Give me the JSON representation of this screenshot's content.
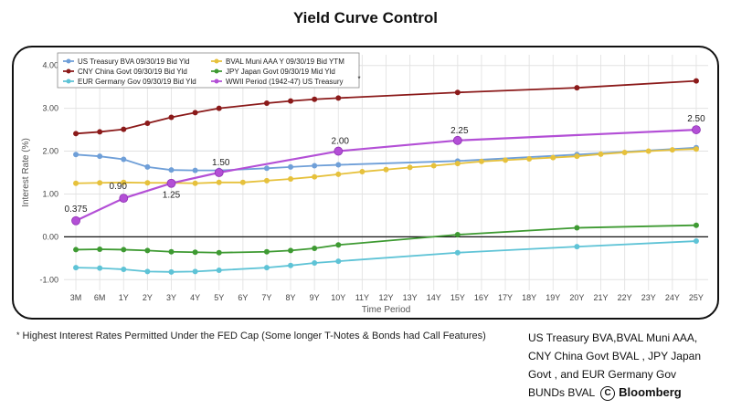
{
  "title": "Yield Curve Control",
  "footnote": {
    "marker": "*",
    "text": "Highest Interest Rates Permitted Under the FED Cap (Some longer T-Notes & Bonds had Call Features)"
  },
  "source": {
    "lines": [
      "US Treasury BVA,BVAL Muni AAA,",
      "CNY China Govt  BVAL , JPY Japan",
      "Govt , and EUR Germany Gov"
    ],
    "last_line": "BUNDs BVAL",
    "copyright_symbol": "C",
    "brand": "Bloomberg"
  },
  "chart_data": {
    "type": "line",
    "xlabel": "Time Period",
    "ylabel": "Interest Rate (%)",
    "ylim": [
      -1.25,
      4.25
    ],
    "yticks": [
      -1.0,
      0.0,
      1.0,
      2.0,
      3.0,
      4.0
    ],
    "ytick_labels": [
      "-1.00",
      "0.00",
      "1.00",
      "2.00",
      "3.00",
      "4.00"
    ],
    "grid": true,
    "zero_line": true,
    "legend_position": "top-left",
    "categories": [
      "3M",
      "6M",
      "1Y",
      "2Y",
      "3Y",
      "4Y",
      "5Y",
      "6Y",
      "7Y",
      "8Y",
      "9Y",
      "10Y",
      "11Y",
      "12Y",
      "13Y",
      "14Y",
      "15Y",
      "16Y",
      "17Y",
      "18Y",
      "19Y",
      "20Y",
      "21Y",
      "22Y",
      "23Y",
      "24Y",
      "25Y"
    ],
    "series": [
      {
        "name": "US Treasury BVA 09/30/19 Bid Yld",
        "color": "#6f9fd8",
        "x": [
          "3M",
          "6M",
          "1Y",
          "2Y",
          "3Y",
          "4Y",
          "5Y",
          "7Y",
          "8Y",
          "9Y",
          "10Y",
          "15Y",
          "20Y",
          "25Y"
        ],
        "values": [
          1.92,
          1.88,
          1.81,
          1.63,
          1.56,
          1.55,
          1.55,
          1.6,
          1.63,
          1.66,
          1.68,
          1.77,
          1.92,
          2.08
        ]
      },
      {
        "name": "BVAL Muni AAA Y 09/30/19 Bid YTM",
        "color": "#e6c13c",
        "x": [
          "3M",
          "6M",
          "1Y",
          "2Y",
          "3Y",
          "4Y",
          "5Y",
          "6Y",
          "7Y",
          "8Y",
          "9Y",
          "10Y",
          "11Y",
          "12Y",
          "13Y",
          "14Y",
          "15Y",
          "16Y",
          "17Y",
          "18Y",
          "19Y",
          "20Y",
          "21Y",
          "22Y",
          "23Y",
          "24Y",
          "25Y"
        ],
        "values": [
          1.25,
          1.26,
          1.27,
          1.26,
          1.26,
          1.25,
          1.27,
          1.27,
          1.31,
          1.35,
          1.4,
          1.46,
          1.52,
          1.57,
          1.62,
          1.66,
          1.71,
          1.76,
          1.79,
          1.82,
          1.85,
          1.88,
          1.93,
          1.97,
          2.0,
          2.03,
          2.05
        ]
      },
      {
        "name": "CNY China Govt 09/30/19 Bid Yld",
        "color": "#8b1a1a",
        "x": [
          "3M",
          "6M",
          "1Y",
          "2Y",
          "3Y",
          "4Y",
          "5Y",
          "7Y",
          "8Y",
          "9Y",
          "10Y",
          "15Y",
          "20Y",
          "25Y"
        ],
        "values": [
          2.41,
          2.45,
          2.51,
          2.65,
          2.79,
          2.9,
          3.0,
          3.12,
          3.17,
          3.21,
          3.24,
          3.37,
          3.48,
          3.64
        ]
      },
      {
        "name": "JPY Japan Govt 09/30/19 Mid Yld",
        "color": "#3e9a32",
        "x": [
          "3M",
          "6M",
          "1Y",
          "2Y",
          "3Y",
          "4Y",
          "5Y",
          "7Y",
          "8Y",
          "9Y",
          "10Y",
          "15Y",
          "20Y",
          "25Y"
        ],
        "values": [
          -0.3,
          -0.29,
          -0.3,
          -0.32,
          -0.35,
          -0.36,
          -0.37,
          -0.35,
          -0.32,
          -0.27,
          -0.19,
          0.05,
          0.21,
          0.27
        ]
      },
      {
        "name": "EUR Germany Gov 09/30/19 Bid Yld",
        "color": "#5ec3d6",
        "x": [
          "3M",
          "6M",
          "1Y",
          "2Y",
          "3Y",
          "4Y",
          "5Y",
          "7Y",
          "8Y",
          "9Y",
          "10Y",
          "15Y",
          "20Y",
          "25Y"
        ],
        "values": [
          -0.72,
          -0.73,
          -0.76,
          -0.81,
          -0.82,
          -0.81,
          -0.78,
          -0.72,
          -0.67,
          -0.61,
          -0.57,
          -0.37,
          -0.23,
          -0.1
        ]
      },
      {
        "name": "WWII Period (1942-47) US Treasury",
        "legend_marker": "*",
        "color": "#b34fd6",
        "x": [
          "3M",
          "1Y",
          "3Y",
          "5Y",
          "10Y",
          "15Y",
          "25Y"
        ],
        "values": [
          0.375,
          0.9,
          1.25,
          1.5,
          2.0,
          2.25,
          2.5
        ],
        "point_labels": [
          "0.375",
          "0.90",
          "1.25",
          "1.50",
          "2.00",
          "2.25",
          "2.50"
        ]
      }
    ]
  }
}
